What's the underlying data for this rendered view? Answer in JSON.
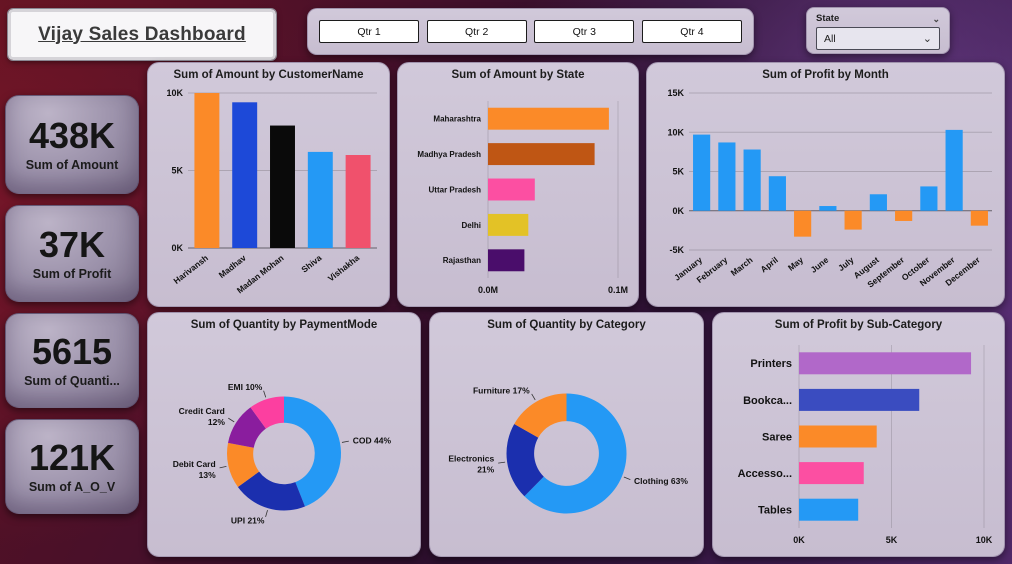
{
  "header": {
    "title": "Vijay Sales Dashboard"
  },
  "quarter_buttons": [
    "Qtr 1",
    "Qtr 2",
    "Qtr 3",
    "Qtr 4"
  ],
  "state_slicer": {
    "label": "State",
    "value": "All"
  },
  "kpis": [
    {
      "value": "438K",
      "label": "Sum of Amount"
    },
    {
      "value": "37K",
      "label": "Sum of Profit"
    },
    {
      "value": "5615",
      "label": "Sum of Quanti..."
    },
    {
      "value": "121K",
      "label": "Sum of A_O_V"
    }
  ],
  "chart_data": [
    {
      "id": "amount-by-customer",
      "type": "column",
      "title": "Sum of Amount by CustomerName",
      "categories": [
        "Harivansh",
        "Madhav",
        "Madan Mohan",
        "Shiva",
        "Vishakha"
      ],
      "values": [
        10000,
        9400,
        7900,
        6200,
        6000
      ],
      "colors": [
        "#fb8a28",
        "#1d49d8",
        "#0a0a0a",
        "#2499f5",
        "#f0516c"
      ],
      "ylim": [
        0,
        10000
      ],
      "yticks": [
        {
          "v": 0,
          "label": "0K"
        },
        {
          "v": 5000,
          "label": "5K"
        },
        {
          "v": 10000,
          "label": "10K"
        }
      ]
    },
    {
      "id": "amount-by-state",
      "type": "hbar",
      "title": "Sum of Amount by State",
      "categories": [
        "Maharashtra",
        "Madhya Pradesh",
        "Uttar Pradesh",
        "Delhi",
        "Rajasthan"
      ],
      "values": [
        0.093,
        0.082,
        0.036,
        0.031,
        0.028
      ],
      "colors": [
        "#fb8a28",
        "#bf5614",
        "#fc4fa2",
        "#e3c226",
        "#4a0d6b"
      ],
      "xlim": [
        0,
        0.1
      ],
      "xticks": [
        {
          "v": 0,
          "label": "0.0M"
        },
        {
          "v": 0.1,
          "label": "0.1M"
        }
      ]
    },
    {
      "id": "profit-by-month",
      "type": "column",
      "title": "Sum of Profit by Month",
      "categories": [
        "January",
        "February",
        "March",
        "April",
        "May",
        "June",
        "July",
        "August",
        "September",
        "October",
        "November",
        "December"
      ],
      "values": [
        9700,
        8700,
        7800,
        4400,
        -3300,
        600,
        -2400,
        2100,
        -1300,
        3100,
        10300,
        -1900
      ],
      "positive_color": "#2499f5",
      "negative_color": "#fb8a28",
      "ylim": [
        -5000,
        15000
      ],
      "yticks": [
        {
          "v": 15000,
          "label": "15K"
        },
        {
          "v": 10000,
          "label": "10K"
        },
        {
          "v": 5000,
          "label": "5K"
        },
        {
          "v": 0,
          "label": "0K"
        },
        {
          "v": -5000,
          "label": "-5K"
        }
      ]
    },
    {
      "id": "quantity-by-paymentmode",
      "type": "donut",
      "title": "Sum of Quantity by PaymentMode",
      "slices": [
        {
          "label": "COD",
          "pct": 44,
          "color": "#2499f5"
        },
        {
          "label": "UPI",
          "pct": 21,
          "color": "#1b2fae"
        },
        {
          "label": "Debit Card",
          "pct": 13,
          "color": "#fb8a28"
        },
        {
          "label": "Credit Card",
          "pct": 12,
          "color": "#8a1d9e"
        },
        {
          "label": "EMI",
          "pct": 10,
          "color": "#fc3fa0"
        }
      ]
    },
    {
      "id": "quantity-by-category",
      "type": "donut",
      "title": "Sum of Quantity by Category",
      "slices": [
        {
          "label": "Clothing",
          "pct": 63,
          "color": "#2499f5"
        },
        {
          "label": "Electronics",
          "pct": 21,
          "color": "#1b2fae"
        },
        {
          "label": "Furniture",
          "pct": 17,
          "color": "#fb8a28"
        }
      ]
    },
    {
      "id": "profit-by-subcategory",
      "type": "hbar",
      "title": "Sum of Profit by Sub-Category",
      "categories": [
        "Printers",
        "Bookca...",
        "Saree",
        "Accesso...",
        "Tables"
      ],
      "values": [
        9300,
        6500,
        4200,
        3500,
        3200
      ],
      "colors": [
        "#b168c9",
        "#3a4cc0",
        "#fb8a28",
        "#fc4fa2",
        "#2499f5"
      ],
      "xlim": [
        0,
        10000
      ],
      "xticks": [
        {
          "v": 0,
          "label": "0K"
        },
        {
          "v": 5000,
          "label": "5K"
        },
        {
          "v": 10000,
          "label": "10K"
        }
      ]
    }
  ]
}
